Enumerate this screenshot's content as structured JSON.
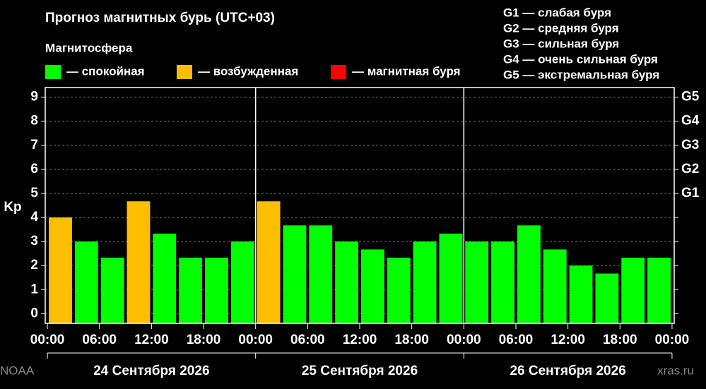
{
  "chart_data": {
    "type": "bar",
    "title": "Прогноз магнитных бурь (UTC+03)",
    "subtitle": "Магнитосфера",
    "legend": [
      {
        "name": "— спокойная",
        "color": "#00ff00"
      },
      {
        "name": "— возбужденная",
        "color": "#ffbf00"
      },
      {
        "name": "— магнитная буря",
        "color": "#ff0000"
      }
    ],
    "storm_levels": [
      "G1 — слабая буря",
      "G2 — средняя буря",
      "G3 — сильная буря",
      "G4 — очень сильная буря",
      "G5 — экстремальная буря"
    ],
    "ylabel": "Kp",
    "x": [
      0,
      3,
      6,
      9,
      12,
      15,
      18,
      21,
      24,
      27,
      30,
      33,
      36,
      39,
      42,
      45,
      48,
      51,
      54,
      57,
      60,
      63,
      66,
      69
    ],
    "values": [
      4.0,
      3.0,
      2.33,
      4.67,
      3.33,
      2.33,
      2.33,
      3.0,
      4.67,
      3.67,
      3.67,
      3.0,
      2.67,
      2.33,
      3.0,
      3.33,
      3.0,
      3.0,
      3.67,
      2.67,
      2.0,
      1.67,
      2.33,
      2.33
    ],
    "colors": [
      "#ffbf00",
      "#00ff00",
      "#00ff00",
      "#ffbf00",
      "#00ff00",
      "#00ff00",
      "#00ff00",
      "#00ff00",
      "#ffbf00",
      "#00ff00",
      "#00ff00",
      "#00ff00",
      "#00ff00",
      "#00ff00",
      "#00ff00",
      "#00ff00",
      "#00ff00",
      "#00ff00",
      "#00ff00",
      "#00ff00",
      "#00ff00",
      "#00ff00",
      "#00ff00",
      "#00ff00"
    ],
    "bar_width": 3,
    "xlim": [
      -0.25,
      72.25
    ],
    "xticks": [
      {
        "value": 0,
        "label": "00:00"
      },
      {
        "value": 6,
        "label": "06:00"
      },
      {
        "value": 12,
        "label": "12:00"
      },
      {
        "value": 18,
        "label": "18:00"
      },
      {
        "value": 24,
        "label": "00:00"
      },
      {
        "value": 30,
        "label": "06:00"
      },
      {
        "value": 36,
        "label": "12:00"
      },
      {
        "value": 42,
        "label": "18:00"
      },
      {
        "value": 48,
        "label": "00:00"
      },
      {
        "value": 54,
        "label": "06:00"
      },
      {
        "value": 60,
        "label": "12:00"
      },
      {
        "value": 66,
        "label": "18:00"
      },
      {
        "value": 72,
        "label": "00:00"
      }
    ],
    "day_separators": [
      24,
      48
    ],
    "days": [
      "24 Сентября 2026",
      "25 Сентября 2026",
      "26 Сентября 2026"
    ],
    "ylim": [
      -0.4,
      9.4
    ],
    "yticks": [
      0,
      1,
      2,
      3,
      4,
      5,
      6,
      7,
      8,
      9
    ],
    "y2ticks": [
      {
        "value": 5,
        "label": "G1"
      },
      {
        "value": 6,
        "label": "G2"
      },
      {
        "value": 7,
        "label": "G3"
      },
      {
        "value": 8,
        "label": "G4"
      },
      {
        "value": 9,
        "label": "G5"
      }
    ],
    "grid": true,
    "watermarks": [
      "NOAA",
      "xras.ru"
    ]
  }
}
